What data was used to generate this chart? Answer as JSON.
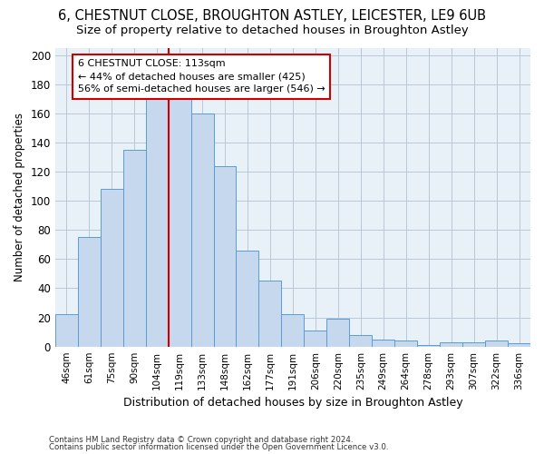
{
  "title": "6, CHESTNUT CLOSE, BROUGHTON ASTLEY, LEICESTER, LE9 6UB",
  "subtitle": "Size of property relative to detached houses in Broughton Astley",
  "xlabel": "Distribution of detached houses by size in Broughton Astley",
  "ylabel": "Number of detached properties",
  "bar_labels": [
    "46sqm",
    "61sqm",
    "75sqm",
    "90sqm",
    "104sqm",
    "119sqm",
    "133sqm",
    "148sqm",
    "162sqm",
    "177sqm",
    "191sqm",
    "206sqm",
    "220sqm",
    "235sqm",
    "249sqm",
    "264sqm",
    "278sqm",
    "293sqm",
    "307sqm",
    "322sqm",
    "336sqm"
  ],
  "bar_values": [
    22,
    75,
    108,
    135,
    170,
    170,
    160,
    124,
    66,
    45,
    22,
    11,
    19,
    8,
    5,
    4,
    1,
    3,
    3,
    4,
    2
  ],
  "bar_color": "#c5d8ed",
  "bar_edge_color": "#5b9bd5",
  "property_line_label": "6 CHESTNUT CLOSE: 113sqm",
  "annotation_line1": "← 44% of detached houses are smaller (425)",
  "annotation_line2": "56% of semi-detached houses are larger (546) →",
  "annotation_box_color": "#ffffff",
  "annotation_box_edge_color": "#cc0000",
  "vline_color": "#cc0000",
  "vline_x_index": 5,
  "ylim": [
    0,
    205
  ],
  "yticks": [
    0,
    20,
    40,
    60,
    80,
    100,
    120,
    140,
    160,
    180,
    200
  ],
  "grid_color": "#b8c8d8",
  "footer1": "Contains HM Land Registry data © Crown copyright and database right 2024.",
  "footer2": "Contains public sector information licensed under the Open Government Licence v3.0.",
  "bg_color": "#e8f0f8",
  "title_fontsize": 10.5,
  "subtitle_fontsize": 9.5,
  "title_fontweight": "normal"
}
